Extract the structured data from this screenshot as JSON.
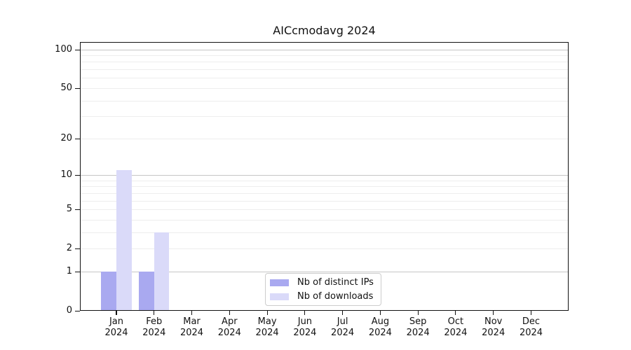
{
  "chart_data": {
    "type": "bar",
    "title": "AICcmodavg 2024",
    "categories": [
      "Jan",
      "Feb",
      "Mar",
      "Apr",
      "May",
      "Jun",
      "Jul",
      "Aug",
      "Sep",
      "Oct",
      "Nov",
      "Dec"
    ],
    "x_year_label": "2024",
    "series": [
      {
        "name": "Nb of distinct IPs",
        "color": "#a9a9f0",
        "values": [
          1,
          1,
          0,
          0,
          0,
          0,
          0,
          0,
          0,
          0,
          0,
          0
        ]
      },
      {
        "name": "Nb of downloads",
        "color": "#dadaf9",
        "values": [
          11,
          3,
          0,
          0,
          0,
          0,
          0,
          0,
          0,
          0,
          0,
          0
        ]
      }
    ],
    "y_axis": {
      "scale": "log10(1+x)",
      "tick_values": [
        0,
        1,
        2,
        5,
        10,
        20,
        50,
        100
      ],
      "major_grid_values": [
        1,
        10,
        100
      ],
      "minor_grid_values": [
        2,
        3,
        4,
        5,
        6,
        7,
        8,
        9,
        20,
        30,
        40,
        50,
        60,
        70,
        80,
        90
      ],
      "max": 114
    },
    "legend_position": "inside-bottom-center",
    "grid": true,
    "colors": {
      "major_grid": "#c6c6c6",
      "minor_grid": "#ededed",
      "axis": "#111111",
      "text": "#111111",
      "legend_border": "#cccccc"
    }
  }
}
